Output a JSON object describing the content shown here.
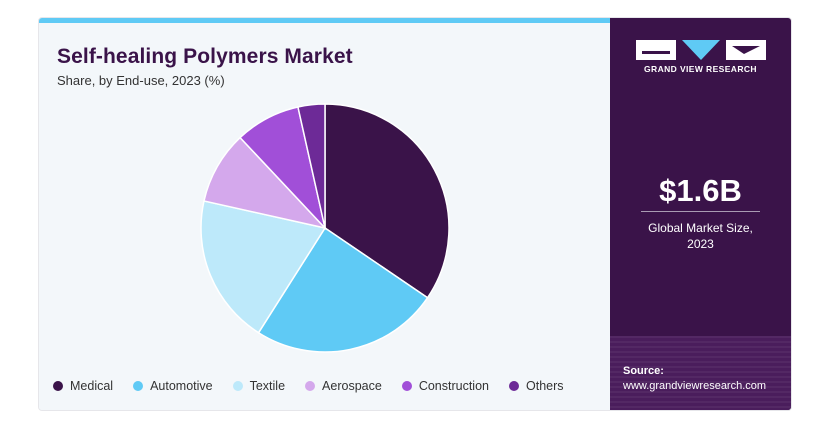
{
  "colors": {
    "medical": "#3a1349",
    "automotive": "#5fcaf5",
    "textile": "#bde9fa",
    "aerospace": "#d4a8ec",
    "construction": "#a14fd8",
    "others": "#6d2a97",
    "panel": "#3a1349",
    "accent_bar": "#5fcaf5"
  },
  "chart_data": {
    "type": "pie",
    "title": "Self-healing Polymers Market",
    "subtitle": "Share, by End-use, 2023 (%)",
    "categories": [
      "Medical",
      "Automotive",
      "Textile",
      "Aerospace",
      "Construction",
      "Others"
    ],
    "values": [
      34.5,
      24.5,
      19.5,
      9.5,
      8.5,
      3.5
    ],
    "colors": [
      "#3a1349",
      "#5fcaf5",
      "#bde9fa",
      "#d4a8ec",
      "#a14fd8",
      "#6d2a97"
    ],
    "legend_placement": "bottom",
    "start_angle": "top",
    "direction": "clockwise"
  },
  "sidebar": {
    "logo_text": "GRAND VIEW RESEARCH",
    "logo_icon": "gvr-logo",
    "market_value": "$1.6B",
    "market_label_line1": "Global Market Size,",
    "market_label_line2": "2023",
    "source_label": "Source:",
    "source_url": "www.grandviewresearch.com"
  }
}
